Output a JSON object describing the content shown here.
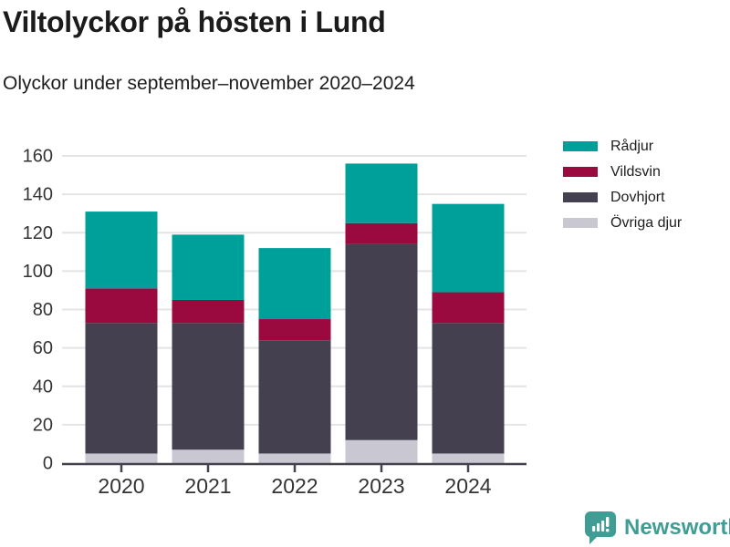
{
  "header": {
    "title": "Viltolyckor på hösten i Lund",
    "subtitle": "Olyckor under september–november 2020–2024"
  },
  "chart_data": {
    "type": "bar",
    "stacked": true,
    "title": "Viltolyckor på hösten i Lund",
    "subtitle": "Olyckor under september–november 2020–2024",
    "categories": [
      "2020",
      "2021",
      "2022",
      "2023",
      "2024"
    ],
    "series": [
      {
        "name": "Rådjur",
        "color": "#00A09A",
        "values": [
          40,
          34,
          37,
          31,
          46
        ]
      },
      {
        "name": "Vildsvin",
        "color": "#9A0A3E",
        "values": [
          18,
          12,
          11,
          11,
          16
        ]
      },
      {
        "name": "Dovhjort",
        "color": "#444050",
        "values": [
          68,
          66,
          59,
          102,
          68
        ]
      },
      {
        "name": "Övriga djur",
        "color": "#C9C7D1",
        "values": [
          5,
          7,
          5,
          12,
          5
        ]
      }
    ],
    "stack_order_bottom_to_top": [
      "Övriga djur",
      "Dovhjort",
      "Vildsvin",
      "Rådjur"
    ],
    "totals": [
      131,
      119,
      112,
      156,
      135
    ],
    "xlabel": "",
    "ylabel": "",
    "ylim": [
      0,
      160
    ],
    "yticks": [
      0,
      20,
      40,
      60,
      80,
      100,
      120,
      140,
      160
    ],
    "grid": "horizontal",
    "legend_position": "right"
  },
  "colors": {
    "axis_line": "#46424d",
    "gridline": "#e4e4e4",
    "tick_label": "#333333",
    "brand_teal": "#3f9d95"
  },
  "footer": {
    "brand": "Newsworthy"
  }
}
